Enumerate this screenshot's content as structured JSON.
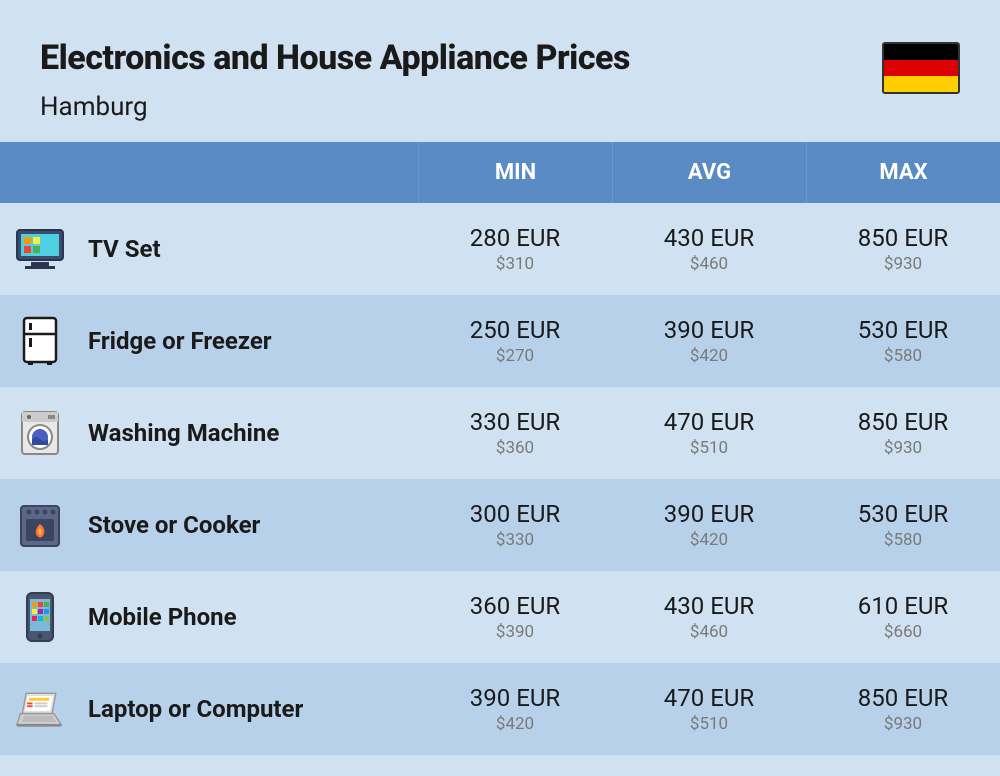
{
  "header": {
    "title": "Electronics and House Appliance Prices",
    "subtitle": "Hamburg",
    "flag_colors": [
      "#000000",
      "#dd0000",
      "#ffce00"
    ]
  },
  "table": {
    "columns": [
      "MIN",
      "AVG",
      "MAX"
    ],
    "header_bg": "#5a8bc4",
    "header_text_color": "#ffffff",
    "row_colors": [
      "#d0e1f2",
      "#b8d1ea"
    ],
    "rows": [
      {
        "icon": "tv",
        "name": "TV Set",
        "min_eur": "280 EUR",
        "min_usd": "$310",
        "avg_eur": "430 EUR",
        "avg_usd": "$460",
        "max_eur": "850 EUR",
        "max_usd": "$930"
      },
      {
        "icon": "fridge",
        "name": "Fridge or Freezer",
        "min_eur": "250 EUR",
        "min_usd": "$270",
        "avg_eur": "390 EUR",
        "avg_usd": "$420",
        "max_eur": "530 EUR",
        "max_usd": "$580"
      },
      {
        "icon": "washer",
        "name": "Washing Machine",
        "min_eur": "330 EUR",
        "min_usd": "$360",
        "avg_eur": "470 EUR",
        "avg_usd": "$510",
        "max_eur": "850 EUR",
        "max_usd": "$930"
      },
      {
        "icon": "stove",
        "name": "Stove or Cooker",
        "min_eur": "300 EUR",
        "min_usd": "$330",
        "avg_eur": "390 EUR",
        "avg_usd": "$420",
        "max_eur": "530 EUR",
        "max_usd": "$580"
      },
      {
        "icon": "phone",
        "name": "Mobile Phone",
        "min_eur": "360 EUR",
        "min_usd": "$390",
        "avg_eur": "430 EUR",
        "avg_usd": "$460",
        "max_eur": "610 EUR",
        "max_usd": "$660"
      },
      {
        "icon": "laptop",
        "name": "Laptop or Computer",
        "min_eur": "390 EUR",
        "min_usd": "$420",
        "avg_eur": "470 EUR",
        "avg_usd": "$510",
        "max_eur": "850 EUR",
        "max_usd": "$930"
      }
    ]
  }
}
